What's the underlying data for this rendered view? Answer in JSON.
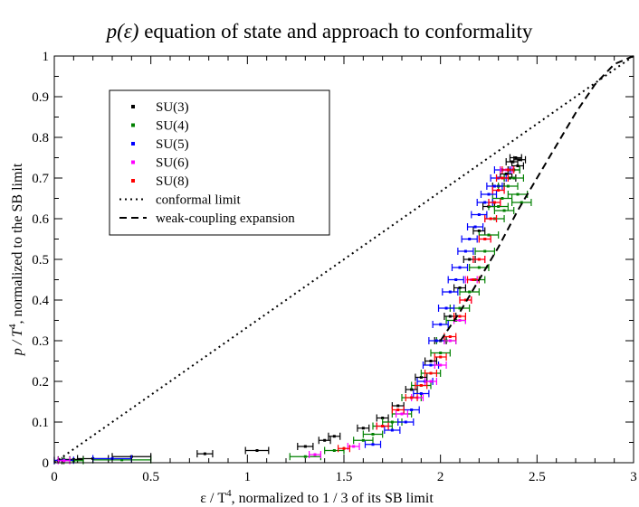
{
  "chart_data": {
    "type": "scatter",
    "title_math": "p(ε)",
    "title_rest": " equation of state and approach to conformality",
    "xlabel": {
      "prefix": "ε  / T",
      "exp": "4",
      "suffix": ", normalized to 1 / 3 of its SB limit"
    },
    "ylabel": {
      "prefix": "p / T",
      "exp": "4",
      "suffix": ", normalized to the SB limit"
    },
    "xlim": [
      0,
      3
    ],
    "ylim": [
      0,
      1
    ],
    "x_ticks": [
      0,
      0.5,
      1,
      1.5,
      2,
      2.5,
      3
    ],
    "x_tick_labels": [
      "0",
      "0.5",
      "1",
      "1.5",
      "2",
      "2.5",
      "3"
    ],
    "y_ticks": [
      0,
      0.1,
      0.2,
      0.3,
      0.4,
      0.5,
      0.6,
      0.7,
      0.8,
      0.9,
      1
    ],
    "y_tick_labels": [
      "0",
      "0.1",
      "0.2",
      "0.3",
      "0.4",
      "0.5",
      "0.6",
      "0.7",
      "0.8",
      "0.9",
      "1"
    ],
    "grid": false,
    "legend_position": "top-left",
    "series": [
      {
        "name": "SU(3)",
        "color": "#000000",
        "points": [
          [
            0.02,
            0.005
          ],
          [
            0.05,
            0.007
          ],
          [
            0.1,
            0.008
          ],
          [
            0.2,
            0.01
          ],
          [
            0.4,
            0.015
          ],
          [
            0.78,
            0.022
          ],
          [
            1.05,
            0.03
          ],
          [
            1.3,
            0.04
          ],
          [
            1.4,
            0.055
          ],
          [
            1.45,
            0.065
          ],
          [
            1.6,
            0.085
          ],
          [
            1.7,
            0.11
          ],
          [
            1.78,
            0.14
          ],
          [
            1.85,
            0.18
          ],
          [
            1.9,
            0.21
          ],
          [
            1.95,
            0.25
          ],
          [
            2.0,
            0.3
          ],
          [
            2.05,
            0.36
          ],
          [
            2.1,
            0.43
          ],
          [
            2.15,
            0.5
          ],
          [
            2.2,
            0.57
          ],
          [
            2.25,
            0.63
          ],
          [
            2.3,
            0.68
          ],
          [
            2.34,
            0.71
          ],
          [
            2.37,
            0.74
          ],
          [
            2.39,
            0.75
          ],
          [
            2.4,
            0.73
          ],
          [
            2.38,
            0.72
          ],
          [
            2.36,
            0.7
          ],
          [
            2.41,
            0.745
          ]
        ],
        "xerr": [
          0.02,
          0.03,
          0.05,
          0.08,
          0.1,
          0.04,
          0.06,
          0.04,
          0.03,
          0.03,
          0.03,
          0.03,
          0.03,
          0.03,
          0.03,
          0.03,
          0.03,
          0.03,
          0.03,
          0.03,
          0.03,
          0.03,
          0.03,
          0.03,
          0.03,
          0.03,
          0.03,
          0.03,
          0.03,
          0.03
        ]
      },
      {
        "name": "SU(4)",
        "color": "#008000",
        "points": [
          [
            0.1,
            0.005
          ],
          [
            0.35,
            0.007
          ],
          [
            1.3,
            0.015
          ],
          [
            1.45,
            0.03
          ],
          [
            1.6,
            0.055
          ],
          [
            1.65,
            0.07
          ],
          [
            1.7,
            0.09
          ],
          [
            1.75,
            0.1
          ],
          [
            1.8,
            0.12
          ],
          [
            1.85,
            0.16
          ],
          [
            1.9,
            0.19
          ],
          [
            1.95,
            0.22
          ],
          [
            2.0,
            0.27
          ],
          [
            2.03,
            0.3
          ],
          [
            2.08,
            0.35
          ],
          [
            2.1,
            0.38
          ],
          [
            2.15,
            0.42
          ],
          [
            2.18,
            0.45
          ],
          [
            2.2,
            0.48
          ],
          [
            2.23,
            0.52
          ],
          [
            2.25,
            0.56
          ],
          [
            2.28,
            0.6
          ],
          [
            2.3,
            0.63
          ],
          [
            2.32,
            0.65
          ],
          [
            2.35,
            0.68
          ],
          [
            2.38,
            0.7
          ],
          [
            2.4,
            0.66
          ],
          [
            2.42,
            0.64
          ],
          [
            2.36,
            0.72
          ],
          [
            2.33,
            0.62
          ]
        ],
        "xerr": [
          0.05,
          0.15,
          0.08,
          0.05,
          0.05,
          0.05,
          0.05,
          0.05,
          0.05,
          0.05,
          0.05,
          0.05,
          0.05,
          0.05,
          0.05,
          0.05,
          0.05,
          0.05,
          0.05,
          0.05,
          0.05,
          0.05,
          0.05,
          0.05,
          0.05,
          0.05,
          0.05,
          0.05,
          0.05,
          0.05
        ]
      },
      {
        "name": "SU(5)",
        "color": "#0000ff",
        "points": [
          [
            0.05,
            0.006
          ],
          [
            0.3,
            0.01
          ],
          [
            1.65,
            0.045
          ],
          [
            1.75,
            0.08
          ],
          [
            1.82,
            0.1
          ],
          [
            1.85,
            0.13
          ],
          [
            1.9,
            0.17
          ],
          [
            1.92,
            0.2
          ],
          [
            1.95,
            0.24
          ],
          [
            1.98,
            0.3
          ],
          [
            2.0,
            0.34
          ],
          [
            2.03,
            0.38
          ],
          [
            2.05,
            0.42
          ],
          [
            2.08,
            0.45
          ],
          [
            2.1,
            0.48
          ],
          [
            2.13,
            0.52
          ],
          [
            2.15,
            0.55
          ],
          [
            2.18,
            0.58
          ],
          [
            2.2,
            0.61
          ],
          [
            2.23,
            0.64
          ],
          [
            2.25,
            0.66
          ],
          [
            2.28,
            0.68
          ],
          [
            2.3,
            0.7
          ],
          [
            2.32,
            0.72
          ]
        ],
        "xerr": [
          0.05,
          0.1,
          0.04,
          0.04,
          0.04,
          0.04,
          0.04,
          0.04,
          0.04,
          0.04,
          0.04,
          0.04,
          0.04,
          0.04,
          0.04,
          0.04,
          0.04,
          0.04,
          0.04,
          0.04,
          0.04,
          0.04,
          0.04,
          0.04
        ]
      },
      {
        "name": "SU(6)",
        "color": "#ff00ff",
        "points": [
          [
            0.05,
            0.005
          ],
          [
            1.35,
            0.02
          ],
          [
            1.55,
            0.04
          ],
          [
            1.7,
            0.09
          ],
          [
            1.8,
            0.12
          ],
          [
            1.88,
            0.16
          ],
          [
            1.95,
            0.2
          ],
          [
            2.0,
            0.24
          ],
          [
            2.05,
            0.3
          ],
          [
            2.1,
            0.35
          ],
          [
            2.13,
            0.4
          ],
          [
            2.16,
            0.45
          ],
          [
            2.2,
            0.5
          ],
          [
            2.23,
            0.55
          ],
          [
            2.26,
            0.6
          ],
          [
            2.28,
            0.64
          ],
          [
            2.3,
            0.67
          ],
          [
            2.32,
            0.7
          ],
          [
            2.34,
            0.72
          ]
        ],
        "xerr": [
          0.03,
          0.03,
          0.03,
          0.03,
          0.03,
          0.03,
          0.03,
          0.03,
          0.03,
          0.03,
          0.03,
          0.03,
          0.03,
          0.03,
          0.03,
          0.03,
          0.03,
          0.03,
          0.03
        ]
      },
      {
        "name": "SU(8)",
        "color": "#ff0000",
        "points": [
          [
            1.5,
            0.035
          ],
          [
            1.7,
            0.09
          ],
          [
            1.78,
            0.13
          ],
          [
            1.85,
            0.16
          ],
          [
            1.9,
            0.19
          ],
          [
            1.95,
            0.22
          ],
          [
            2.0,
            0.26
          ],
          [
            2.05,
            0.31
          ],
          [
            2.1,
            0.36
          ],
          [
            2.13,
            0.4
          ],
          [
            2.17,
            0.45
          ],
          [
            2.2,
            0.5
          ],
          [
            2.23,
            0.55
          ],
          [
            2.26,
            0.6
          ],
          [
            2.28,
            0.64
          ],
          [
            2.3,
            0.67
          ],
          [
            2.32,
            0.7
          ],
          [
            2.35,
            0.72
          ]
        ],
        "xerr": [
          0.03,
          0.03,
          0.03,
          0.03,
          0.03,
          0.03,
          0.03,
          0.03,
          0.03,
          0.03,
          0.03,
          0.03,
          0.03,
          0.03,
          0.03,
          0.03,
          0.03,
          0.03
        ]
      }
    ],
    "lines": [
      {
        "name": "conformal limit",
        "style": "dotted",
        "color": "#000000",
        "x": [
          0,
          3
        ],
        "y": [
          0,
          1
        ]
      },
      {
        "name": "weak-coupling expansion",
        "style": "dashed",
        "color": "#000000",
        "x": [
          2.0,
          2.1,
          2.2,
          2.3,
          2.4,
          2.5,
          2.6,
          2.7,
          2.8,
          2.9,
          3.0
        ],
        "y": [
          0.3,
          0.37,
          0.45,
          0.53,
          0.62,
          0.7,
          0.78,
          0.86,
          0.93,
          0.98,
          1.0
        ]
      }
    ]
  }
}
